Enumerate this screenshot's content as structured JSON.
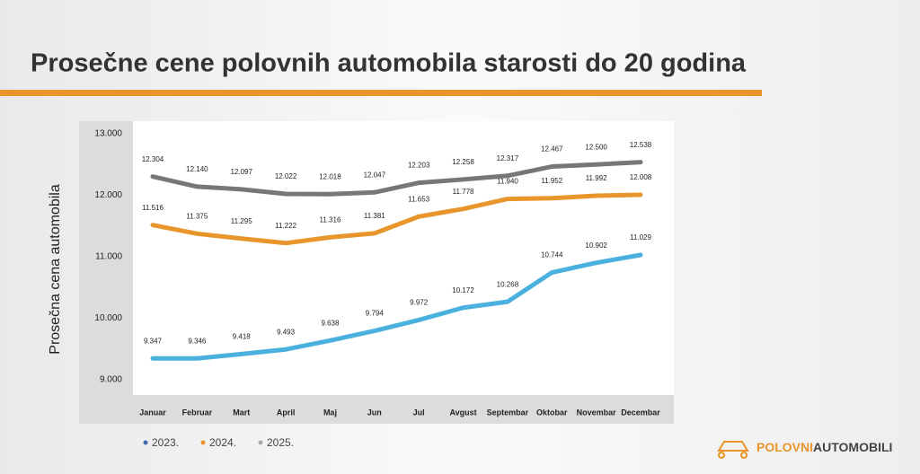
{
  "chart_data": {
    "type": "line",
    "title": "Prosečne cene polovnih automobila starosti do 20 godina",
    "y_label": "Prosečna cena automobila",
    "categories": [
      "Januar",
      "Februar",
      "Mart",
      "April",
      "Maj",
      "Jun",
      "Jul",
      "Avgust",
      "Septembar",
      "Oktobar",
      "Novembar",
      "Decembar"
    ],
    "series": [
      {
        "name": "2023.",
        "color": "#4ab1de",
        "legend_color": "#3f6cb0",
        "values": [
          9347,
          9346,
          9418,
          9493,
          9638,
          9794,
          9972,
          10172,
          10268,
          10744,
          10902,
          11029
        ],
        "value_labels": [
          "9.347",
          "9.346",
          "9.418",
          "9.493",
          "9.638",
          "9.794",
          "9.972",
          "10.172",
          "10.268",
          "10.744",
          "10.902",
          "11.029"
        ]
      },
      {
        "name": "2024.",
        "color": "#e8952c",
        "legend_color": "#e8952c",
        "values": [
          11516,
          11375,
          11295,
          11222,
          11316,
          11381,
          11653,
          11778,
          11940,
          11952,
          11992,
          12008
        ],
        "value_labels": [
          "11.516",
          "11.375",
          "11.295",
          "11.222",
          "11.316",
          "11.381",
          "11.653",
          "11.778",
          "11.940",
          "11.952",
          "11.992",
          "12.008"
        ]
      },
      {
        "name": "2025.",
        "color": "#777777",
        "legend_color": "#aaaaaa",
        "values": [
          12304,
          12140,
          12097,
          12022,
          12018,
          12047,
          12203,
          12258,
          12317,
          12467,
          12500,
          12538
        ],
        "value_labels": [
          "12.304",
          "12.140",
          "12.097",
          "12.022",
          "12.018",
          "12.047",
          "12.203",
          "12.258",
          "12.317",
          "12.467",
          "12.500",
          "12.538"
        ]
      }
    ],
    "ylim": [
      9000,
      13000
    ],
    "yticks": [
      {
        "value": 9000,
        "label": "9.000"
      },
      {
        "value": 10000,
        "label": "10.000"
      },
      {
        "value": 11000,
        "label": "11.000"
      },
      {
        "value": 12000,
        "label": "12.000"
      },
      {
        "value": 13000,
        "label": "13.000"
      }
    ],
    "logo": [
      "POLOVNI",
      "AUTOMOBILI"
    ]
  }
}
